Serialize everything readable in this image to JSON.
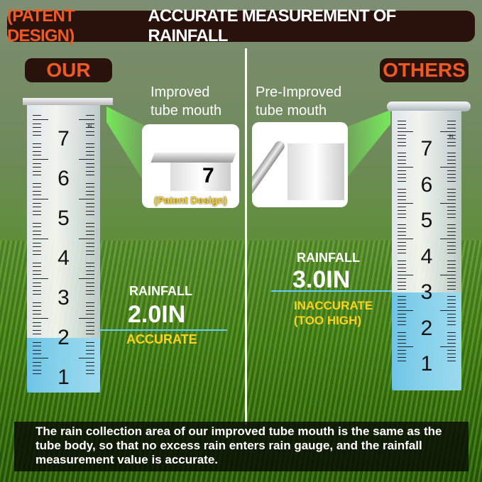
{
  "title": {
    "highlight": "(PATENT DESIGN)",
    "rest": "ACCURATE MEASUREMENT OF RAINFALL"
  },
  "left": {
    "label": "OUR",
    "caption_line1": "Improved",
    "caption_line2": "tube mouth",
    "inset_note": "(Patent Design)",
    "rainfall_label": "RAINFALL",
    "rainfall_value": "2.0IN",
    "verdict": "ACCURATE",
    "water_level_in": 2.0
  },
  "right": {
    "label": "OTHERS",
    "caption_line1": "Pre-Improved",
    "caption_line2": "tube mouth",
    "rainfall_label": "RAINFALL",
    "rainfall_value": "3.0IN",
    "verdict_line1": "INACCURATE",
    "verdict_line2": "(TOO HIGH)",
    "water_level_in": 3.0
  },
  "scale": {
    "numbers": [
      "1",
      "2",
      "3",
      "4",
      "5",
      "6",
      "7"
    ],
    "unit": "IN."
  },
  "bottom_text": "The rain collection area of our improved tube mouth is the same as the tube body, so that no excess rain enters rain gauge, and the rainfall measurement value is accurate.",
  "colors": {
    "accent": "#f05a22",
    "highlight": "#ffd21a",
    "water": "#5abee6",
    "banner": "#2a120c"
  }
}
